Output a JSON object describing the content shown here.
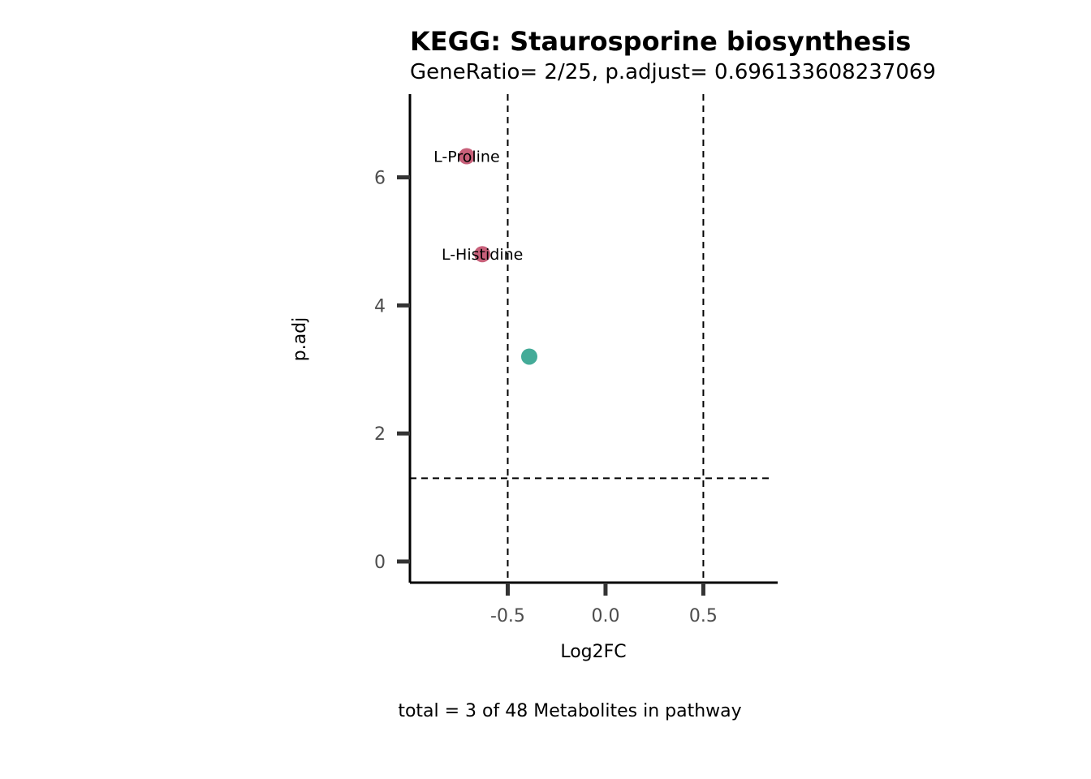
{
  "chart_data": {
    "type": "scatter",
    "title": "KEGG: Staurosporine biosynthesis",
    "subtitle": "GeneRatio= 2/25, p.adjust= 0.696133608237069",
    "xlabel": "Log2FC",
    "ylabel": "p.adj",
    "caption": "total = 3 of 48 Metabolites in pathway",
    "xlim": [
      -1.0,
      0.88
    ],
    "ylim": [
      -0.33,
      7.3
    ],
    "x_ticks": [
      -0.5,
      0.0,
      0.5
    ],
    "x_tick_labels": [
      "-0.5",
      "0.0",
      "0.5"
    ],
    "y_ticks": [
      0,
      2,
      4,
      6
    ],
    "y_tick_labels": [
      "0",
      "2",
      "4",
      "6"
    ],
    "vlines": [
      -0.5,
      0.5
    ],
    "hline": 1.3,
    "grid": false,
    "legend": "none",
    "colors": {
      "highlight": "#c8607a",
      "other": "#44ab98"
    },
    "points": [
      {
        "x": -0.71,
        "y": 6.33,
        "label": "L-Proline",
        "color": "#c8607a"
      },
      {
        "x": -0.63,
        "y": 4.8,
        "label": "L-Histidine",
        "color": "#c8607a"
      },
      {
        "x": -0.39,
        "y": 3.2,
        "label": "",
        "color": "#44ab98"
      }
    ]
  }
}
